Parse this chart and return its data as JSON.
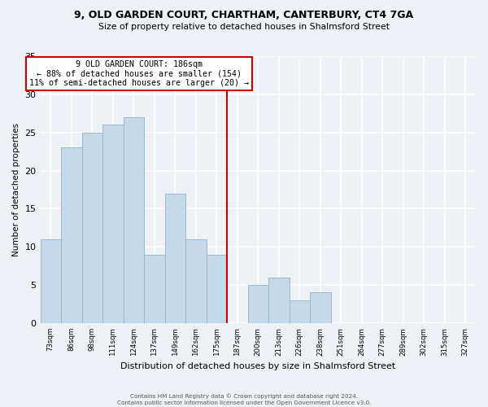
{
  "title1": "9, OLD GARDEN COURT, CHARTHAM, CANTERBURY, CT4 7GA",
  "title2": "Size of property relative to detached houses in Shalmsford Street",
  "xlabel": "Distribution of detached houses by size in Shalmsford Street",
  "ylabel": "Number of detached properties",
  "footnote": "Contains HM Land Registry data © Crown copyright and database right 2024.\nContains public sector information licensed under the Open Government Licence v3.0.",
  "bin_labels": [
    "73sqm",
    "86sqm",
    "98sqm",
    "111sqm",
    "124sqm",
    "137sqm",
    "149sqm",
    "162sqm",
    "175sqm",
    "187sqm",
    "200sqm",
    "213sqm",
    "226sqm",
    "238sqm",
    "251sqm",
    "264sqm",
    "277sqm",
    "289sqm",
    "302sqm",
    "315sqm",
    "327sqm"
  ],
  "bar_values": [
    11,
    23,
    25,
    26,
    27,
    9,
    17,
    11,
    9,
    0,
    5,
    6,
    3,
    4,
    0,
    0,
    0,
    0,
    0,
    0,
    0
  ],
  "bar_color": "#c6d9ea",
  "bar_edge_color": "#9ab8d0",
  "vline_x_index": 9,
  "vline_color": "#cc0000",
  "annotation_title": "9 OLD GARDEN COURT: 186sqm",
  "annotation_line1": "← 88% of detached houses are smaller (154)",
  "annotation_line2": "11% of semi-detached houses are larger (20) →",
  "annotation_box_color": "#ffffff",
  "annotation_box_edge_color": "#cc0000",
  "ylim": [
    0,
    35
  ],
  "yticks": [
    0,
    5,
    10,
    15,
    20,
    25,
    30,
    35
  ],
  "bg_color": "#eef2f7",
  "grid_color": "#ffffff"
}
